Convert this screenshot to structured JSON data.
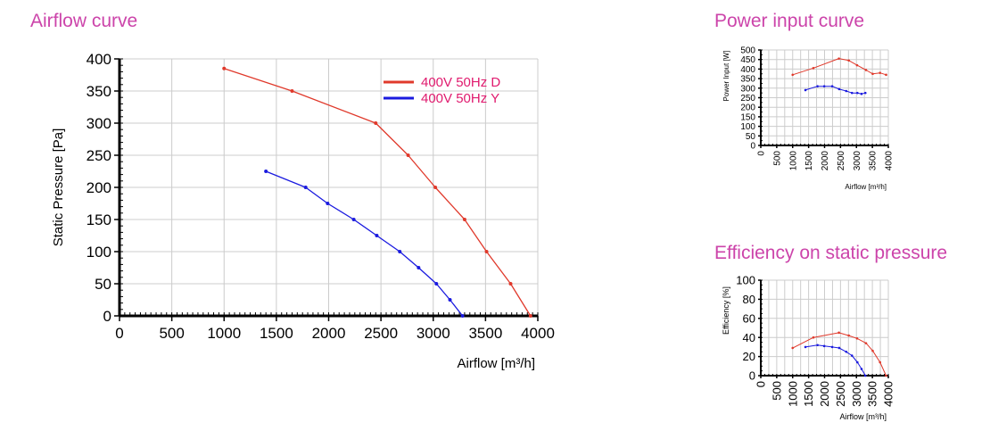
{
  "colors": {
    "title": "#cc44aa",
    "series_d": "#e0392b",
    "series_y": "#1a1adf",
    "grid": "#cccccc",
    "axis": "#000000",
    "legend_text": "#e01a6e"
  },
  "chart_data": [
    {
      "type": "line",
      "title": "Airflow curve",
      "xlabel": "Airflow [m³/h]",
      "ylabel": "Static Pressure [Pa]",
      "xlim": [
        0,
        4000
      ],
      "ylim": [
        0,
        400
      ],
      "xticks": [
        0,
        500,
        1000,
        1500,
        2000,
        2500,
        3000,
        3500,
        4000
      ],
      "yticks": [
        0,
        50,
        100,
        150,
        200,
        250,
        300,
        350,
        400
      ],
      "grid": true,
      "legend_position": "top-right",
      "series": [
        {
          "name": "400V 50Hz D",
          "x": [
            1000,
            1650,
            2450,
            2760,
            3020,
            3300,
            3510,
            3740,
            3930
          ],
          "y": [
            385,
            350,
            300,
            250,
            200,
            150,
            100,
            50,
            0
          ]
        },
        {
          "name": "400V 50Hz Y",
          "x": [
            1400,
            1780,
            1990,
            2240,
            2460,
            2680,
            2860,
            3030,
            3160,
            3280
          ],
          "y": [
            225,
            200,
            175,
            150,
            125,
            100,
            75,
            50,
            25,
            0
          ]
        }
      ]
    },
    {
      "type": "line",
      "title": "Power input curve",
      "xlabel": "Airflow [m³/h]",
      "ylabel": "Power Input [W]",
      "xlim": [
        0,
        4000
      ],
      "ylim": [
        0,
        500
      ],
      "xticks": [
        0,
        500,
        1000,
        1500,
        2000,
        2500,
        3000,
        3500,
        4000
      ],
      "yticks": [
        0,
        50,
        100,
        150,
        200,
        250,
        300,
        350,
        400,
        450,
        500
      ],
      "grid": true,
      "series": [
        {
          "name": "400V 50Hz D",
          "x": [
            1000,
            1650,
            2450,
            2760,
            3020,
            3300,
            3510,
            3740,
            3930
          ],
          "y": [
            370,
            405,
            455,
            445,
            420,
            395,
            375,
            380,
            370
          ]
        },
        {
          "name": "400V 50Hz Y",
          "x": [
            1400,
            1780,
            1990,
            2240,
            2460,
            2680,
            2860,
            3030,
            3160,
            3280
          ],
          "y": [
            290,
            310,
            310,
            310,
            295,
            285,
            275,
            275,
            270,
            275
          ]
        }
      ]
    },
    {
      "type": "line",
      "title": "Efficiency on static pressure",
      "xlabel": "Airflow [m³/h]",
      "ylabel": "Efficiency [%]",
      "xlim": [
        0,
        4000
      ],
      "ylim": [
        0,
        100
      ],
      "xticks": [
        0,
        500,
        1000,
        1500,
        2000,
        2500,
        3000,
        3500,
        4000
      ],
      "yticks": [
        0,
        20,
        40,
        60,
        80,
        100
      ],
      "grid": true,
      "series": [
        {
          "name": "400V 50Hz D",
          "x": [
            1000,
            1650,
            2450,
            2760,
            3020,
            3300,
            3510,
            3740,
            3930
          ],
          "y": [
            29,
            40,
            45,
            42,
            39,
            34,
            26,
            14,
            0
          ]
        },
        {
          "name": "400V 50Hz Y",
          "x": [
            1400,
            1780,
            1990,
            2240,
            2460,
            2680,
            2860,
            3030,
            3160,
            3280
          ],
          "y": [
            30,
            32,
            31,
            30,
            29,
            25,
            21,
            14,
            7,
            0
          ]
        }
      ]
    }
  ]
}
